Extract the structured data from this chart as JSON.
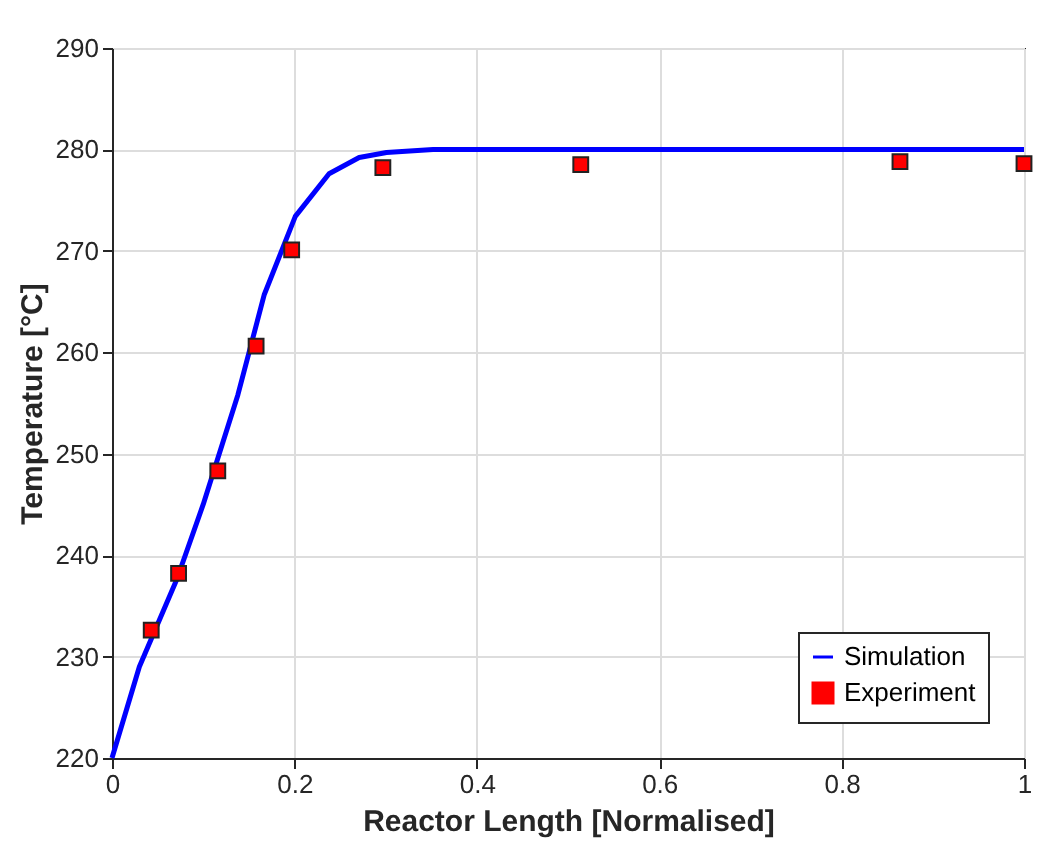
{
  "chart_data": {
    "type": "line",
    "xlabel": "Reactor Length [Normalised]",
    "ylabel": "Temperature [°C]",
    "xlim": [
      0,
      1
    ],
    "xticks": [
      0,
      0.2,
      0.4,
      0.6,
      0.8,
      1
    ],
    "ylim": [
      220,
      290
    ],
    "yticks": [
      220,
      230,
      240,
      250,
      260,
      270,
      280,
      290
    ],
    "grid": true,
    "legend": "bottom right",
    "series": [
      {
        "name": "Simulation",
        "type": "line",
        "color": "#0000ff",
        "line_style": "solid",
        "x": [
          0,
          0.03,
          0.071,
          0.1,
          0.138,
          0.167,
          0.201,
          0.238,
          0.271,
          0.301,
          0.352,
          0.5,
          0.75,
          1
        ],
        "values": [
          220,
          229,
          237.6,
          245,
          255.8,
          265.7,
          273.4,
          277.6,
          279.2,
          279.7,
          280,
          280,
          280,
          280
        ]
      },
      {
        "name": "Experiment",
        "type": "scatter",
        "color": "#ff0000",
        "marker": "square",
        "x": [
          0.043,
          0.073,
          0.116,
          0.158,
          0.197,
          0.297,
          0.514,
          0.864,
          1.0
        ],
        "values": [
          232.6,
          238.2,
          248.3,
          260.6,
          270.1,
          278.2,
          278.5,
          278.8,
          278.6
        ]
      }
    ]
  }
}
